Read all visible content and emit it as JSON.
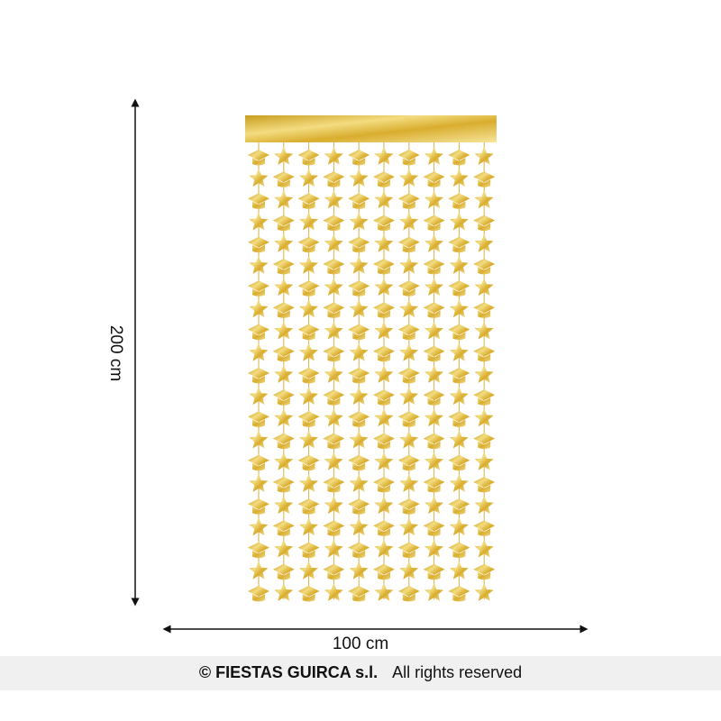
{
  "dimensions": {
    "height": "200 cm",
    "width": "100 cm"
  },
  "footer": {
    "brand": "© FIESTAS GUIRCA s.l.",
    "rights": "All rights reserved"
  }
}
